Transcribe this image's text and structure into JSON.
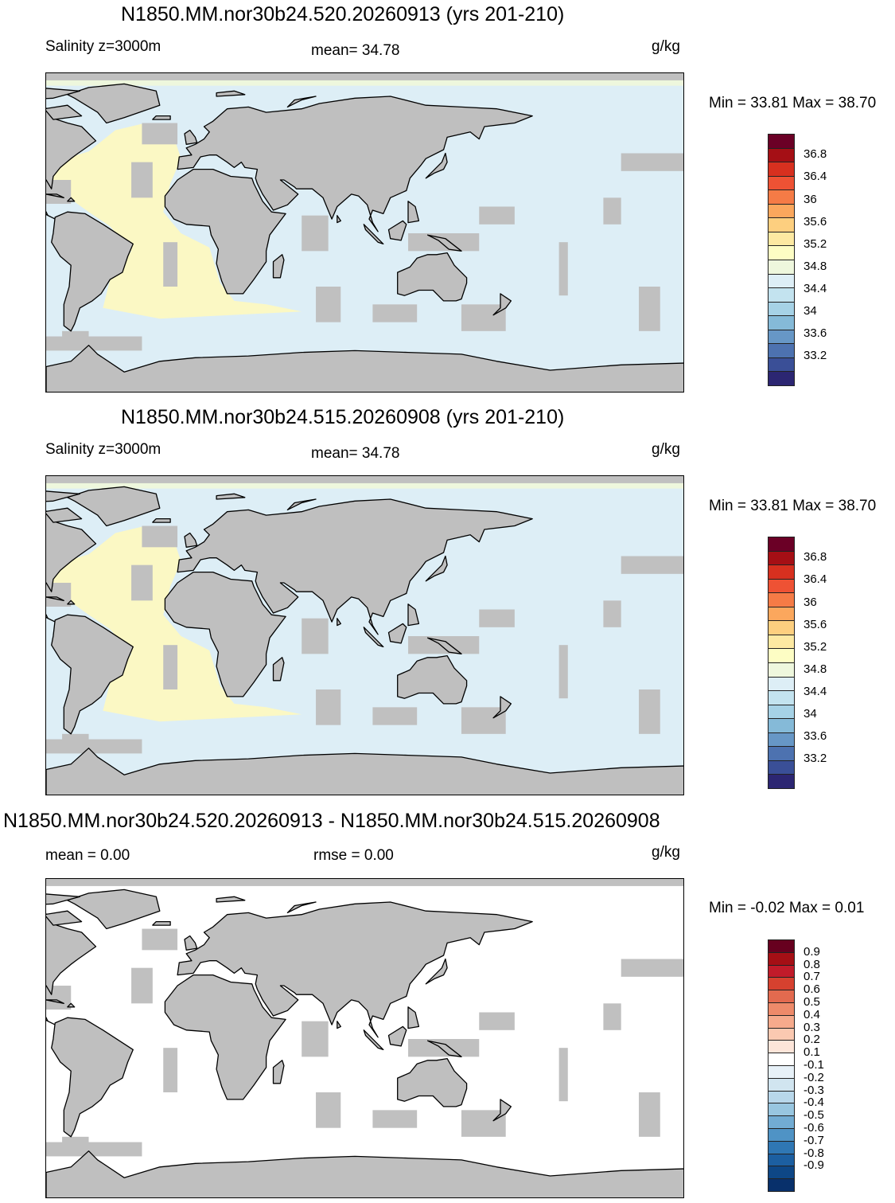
{
  "panels": [
    {
      "title": "N1850.MM.nor30b24.520.20260913 (yrs 201-210)",
      "left_label": "Salinity z=3000m",
      "center_label": "mean=  34.78",
      "units": "g/kg",
      "minmax": "Min =  33.81 Max =  38.70",
      "ocean_color": "#ddeef6",
      "atlantic_color": "#fbf8c4",
      "arctic_color": "#eef7dd",
      "colorbar": {
        "colors": [
          "#6b0026",
          "#a50f15",
          "#d7301f",
          "#ee5234",
          "#f57b46",
          "#fba75d",
          "#fdcf7f",
          "#fde9a2",
          "#fdfdc4",
          "#eef7dd",
          "#ddeef6",
          "#c3e3ef",
          "#a6d2e6",
          "#85bad8",
          "#6797c6",
          "#4d72b0",
          "#3a4f97",
          "#2c2672"
        ],
        "labels": [
          "36.8",
          "36.4",
          "36",
          "35.6",
          "35.2",
          "34.8",
          "34.4",
          "34",
          "33.6",
          "33.2"
        ]
      }
    },
    {
      "title": "N1850.MM.nor30b24.515.20260908 (yrs 201-210)",
      "left_label": "Salinity z=3000m",
      "center_label": "mean=  34.78",
      "units": "g/kg",
      "minmax": "Min =  33.81 Max =  38.70",
      "ocean_color": "#ddeef6",
      "atlantic_color": "#fbf8c4",
      "arctic_color": "#eef7dd",
      "colorbar": {
        "colors": [
          "#6b0026",
          "#a50f15",
          "#d7301f",
          "#ee5234",
          "#f57b46",
          "#fba75d",
          "#fdcf7f",
          "#fde9a2",
          "#fdfdc4",
          "#eef7dd",
          "#ddeef6",
          "#c3e3ef",
          "#a6d2e6",
          "#85bad8",
          "#6797c6",
          "#4d72b0",
          "#3a4f97",
          "#2c2672"
        ],
        "labels": [
          "36.8",
          "36.4",
          "36",
          "35.6",
          "35.2",
          "34.8",
          "34.4",
          "34",
          "33.6",
          "33.2"
        ]
      }
    },
    {
      "title": "N1850.MM.nor30b24.520.20260913 - N1850.MM.nor30b24.515.20260908",
      "left_label": "mean =   0.00",
      "center_label": "rmse =   0.00",
      "units": "g/kg",
      "minmax": "Min =  -0.02 Max =   0.01",
      "ocean_color": "#ffffff",
      "atlantic_color": "#ffffff",
      "arctic_color": "#ffffff",
      "colorbar": {
        "colors": [
          "#67001f",
          "#a50f15",
          "#c11b2a",
          "#d6412f",
          "#e36a4f",
          "#ee8a6a",
          "#f6aa8c",
          "#fbc9b1",
          "#fde5d9",
          "#ffffff",
          "#e7f1f8",
          "#d1e5f0",
          "#b8d7ea",
          "#98c6e0",
          "#72acd3",
          "#4f93c5",
          "#2f77b4",
          "#1c5fa1",
          "#0e4786",
          "#08306b"
        ],
        "labels": [
          "0.9",
          "0.8",
          "0.7",
          "0.6",
          "0.5",
          "0.4",
          "0.3",
          "0.2",
          "0.1",
          "-0.1",
          "-0.2",
          "-0.3",
          "-0.4",
          "-0.5",
          "-0.6",
          "-0.7",
          "-0.8",
          "-0.9"
        ]
      }
    }
  ]
}
